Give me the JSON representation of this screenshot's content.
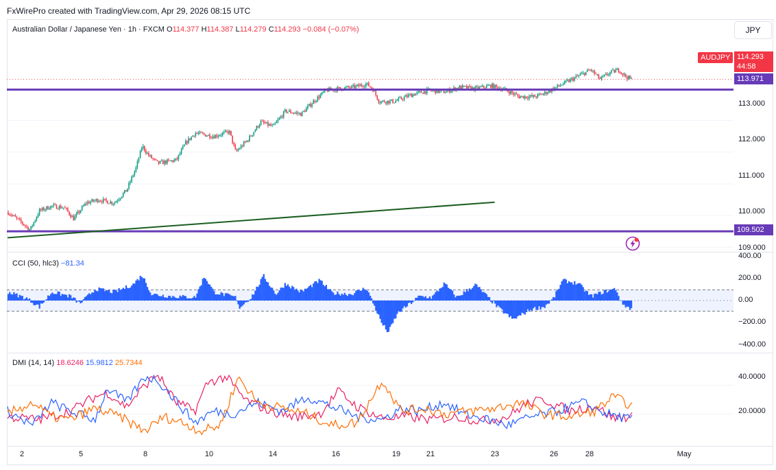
{
  "header": {
    "credit": "FxWirePro created with TradingView.com, Apr 29, 2026 08:15 UTC"
  },
  "legend": {
    "symbol": "Australian Dollar / Japanese Yen · 1h · FXCM",
    "o_label": "O",
    "o": "114.377",
    "h_label": "H",
    "h": "114.387",
    "l_label": "L",
    "l": "114.279",
    "c_label": "C",
    "c": "114.293",
    "change": "−0.084 (−0.07%)"
  },
  "currency_button": "JPY",
  "tags": {
    "symbol": "AUDJPY",
    "price": "114.293",
    "countdown": "44:58",
    "level_high": "113.971",
    "level_low": "109.502"
  },
  "colors": {
    "up": "#089981",
    "down": "#f23645",
    "level": "#673ab7",
    "trend": "#1b5e20",
    "cci": "#2962ff",
    "di_plus": "#2962ff",
    "di_minus": "#e91e63",
    "adx": "#ff6d00"
  },
  "chart_data": [
    {
      "type": "candlestick",
      "ylim": [
        108.9,
        115.5
      ],
      "y_ticks": [
        "113.000",
        "112.000",
        "111.000",
        "110.000",
        "109.000"
      ],
      "x_ticks": [
        "2",
        "5",
        "8",
        "10",
        "14",
        "16",
        "19",
        "21",
        "23",
        "26",
        "28",
        "May"
      ],
      "levels": [
        113.971,
        109.502
      ],
      "trendline": {
        "start": [
          0,
          109.3
        ],
        "end": [
          0.78,
          110.42
        ]
      },
      "close_path": [
        [
          0.0,
          110.1
        ],
        [
          0.02,
          109.8
        ],
        [
          0.035,
          109.55
        ],
        [
          0.05,
          110.15
        ],
        [
          0.07,
          110.3
        ],
        [
          0.09,
          110.25
        ],
        [
          0.105,
          109.9
        ],
        [
          0.125,
          110.4
        ],
        [
          0.145,
          110.5
        ],
        [
          0.17,
          110.4
        ],
        [
          0.19,
          110.8
        ],
        [
          0.205,
          111.5
        ],
        [
          0.215,
          112.2
        ],
        [
          0.225,
          111.9
        ],
        [
          0.24,
          111.65
        ],
        [
          0.27,
          111.75
        ],
        [
          0.285,
          112.3
        ],
        [
          0.3,
          112.6
        ],
        [
          0.33,
          112.5
        ],
        [
          0.355,
          112.65
        ],
        [
          0.365,
          112.0
        ],
        [
          0.385,
          112.4
        ],
        [
          0.405,
          112.95
        ],
        [
          0.425,
          112.8
        ],
        [
          0.445,
          113.3
        ],
        [
          0.47,
          113.2
        ],
        [
          0.49,
          113.6
        ],
        [
          0.51,
          113.95
        ],
        [
          0.53,
          114.0
        ],
        [
          0.555,
          114.05
        ],
        [
          0.575,
          114.15
        ],
        [
          0.585,
          114.0
        ],
        [
          0.595,
          113.6
        ],
        [
          0.62,
          113.6
        ],
        [
          0.645,
          113.8
        ],
        [
          0.675,
          113.95
        ],
        [
          0.7,
          113.9
        ],
        [
          0.725,
          114.05
        ],
        [
          0.75,
          114.0
        ],
        [
          0.775,
          114.1
        ],
        [
          0.8,
          113.95
        ],
        [
          0.82,
          113.75
        ],
        [
          0.845,
          113.75
        ],
        [
          0.86,
          113.85
        ],
        [
          0.875,
          114.0
        ],
        [
          0.895,
          114.2
        ],
        [
          0.915,
          114.4
        ],
        [
          0.935,
          114.6
        ],
        [
          0.95,
          114.3
        ],
        [
          0.965,
          114.5
        ],
        [
          0.98,
          114.6
        ],
        [
          0.99,
          114.4
        ],
        [
          1.0,
          114.29
        ]
      ],
      "last": 114.293
    },
    {
      "type": "bar",
      "name": "CCI (50, hlc3)",
      "value": "−81.34",
      "ylim": [
        -420,
        420
      ],
      "y_ticks": [
        "400.00",
        "200.00",
        "0.00",
        "−200.00",
        "−400.00"
      ],
      "band": [
        100,
        -100
      ],
      "profile": [
        [
          0.0,
          80
        ],
        [
          0.03,
          20
        ],
        [
          0.05,
          -60
        ],
        [
          0.07,
          80
        ],
        [
          0.1,
          40
        ],
        [
          0.115,
          -30
        ],
        [
          0.14,
          110
        ],
        [
          0.17,
          80
        ],
        [
          0.2,
          150
        ],
        [
          0.215,
          240
        ],
        [
          0.23,
          60
        ],
        [
          0.26,
          40
        ],
        [
          0.3,
          30
        ],
        [
          0.315,
          230
        ],
        [
          0.33,
          80
        ],
        [
          0.365,
          30
        ],
        [
          0.37,
          -70
        ],
        [
          0.39,
          30
        ],
        [
          0.41,
          230
        ],
        [
          0.43,
          60
        ],
        [
          0.445,
          160
        ],
        [
          0.47,
          80
        ],
        [
          0.5,
          190
        ],
        [
          0.52,
          70
        ],
        [
          0.55,
          60
        ],
        [
          0.575,
          120
        ],
        [
          0.6,
          -220
        ],
        [
          0.61,
          -300
        ],
        [
          0.625,
          -120
        ],
        [
          0.66,
          40
        ],
        [
          0.68,
          30
        ],
        [
          0.7,
          160
        ],
        [
          0.72,
          30
        ],
        [
          0.75,
          150
        ],
        [
          0.77,
          30
        ],
        [
          0.785,
          -60
        ],
        [
          0.81,
          -180
        ],
        [
          0.84,
          -80
        ],
        [
          0.86,
          -60
        ],
        [
          0.875,
          20
        ],
        [
          0.89,
          190
        ],
        [
          0.915,
          160
        ],
        [
          0.935,
          40
        ],
        [
          0.96,
          90
        ],
        [
          0.975,
          110
        ],
        [
          0.985,
          -30
        ],
        [
          1.0,
          -81
        ]
      ]
    },
    {
      "type": "line",
      "name": "DMI (14, 14)",
      "ylim": [
        0,
        60
      ],
      "y_ticks": [
        "40.0000",
        "20.0000"
      ],
      "series": [
        {
          "name": "",
          "value": "18.6246",
          "color": "#e91e63",
          "profile": [
            [
              0.0,
              18
            ],
            [
              0.05,
              16
            ],
            [
              0.1,
              22
            ],
            [
              0.14,
              32
            ],
            [
              0.16,
              35
            ],
            [
              0.19,
              25
            ],
            [
              0.22,
              40
            ],
            [
              0.24,
              48
            ],
            [
              0.27,
              28
            ],
            [
              0.3,
              22
            ],
            [
              0.32,
              42
            ],
            [
              0.35,
              46
            ],
            [
              0.38,
              30
            ],
            [
              0.42,
              22
            ],
            [
              0.46,
              18
            ],
            [
              0.5,
              20
            ],
            [
              0.53,
              36
            ],
            [
              0.56,
              25
            ],
            [
              0.6,
              17
            ],
            [
              0.64,
              18
            ],
            [
              0.68,
              16
            ],
            [
              0.72,
              18
            ],
            [
              0.76,
              15
            ],
            [
              0.8,
              18
            ],
            [
              0.83,
              27
            ],
            [
              0.86,
              30
            ],
            [
              0.9,
              22
            ],
            [
              0.94,
              26
            ],
            [
              0.97,
              17
            ],
            [
              1.0,
              18.6
            ]
          ]
        },
        {
          "name": "",
          "value": "15.9812",
          "color": "#2962ff",
          "profile": [
            [
              0.0,
              22
            ],
            [
              0.04,
              12
            ],
            [
              0.07,
              28
            ],
            [
              0.1,
              22
            ],
            [
              0.14,
              16
            ],
            [
              0.16,
              38
            ],
            [
              0.19,
              28
            ],
            [
              0.22,
              46
            ],
            [
              0.24,
              44
            ],
            [
              0.28,
              24
            ],
            [
              0.3,
              14
            ],
            [
              0.33,
              22
            ],
            [
              0.36,
              20
            ],
            [
              0.4,
              28
            ],
            [
              0.44,
              22
            ],
            [
              0.48,
              32
            ],
            [
              0.52,
              25
            ],
            [
              0.56,
              18
            ],
            [
              0.6,
              16
            ],
            [
              0.63,
              24
            ],
            [
              0.66,
              22
            ],
            [
              0.7,
              28
            ],
            [
              0.73,
              20
            ],
            [
              0.77,
              16
            ],
            [
              0.8,
              12
            ],
            [
              0.84,
              18
            ],
            [
              0.88,
              22
            ],
            [
              0.92,
              28
            ],
            [
              0.96,
              20
            ],
            [
              1.0,
              16
            ]
          ]
        },
        {
          "name": "",
          "value": "25.7344",
          "color": "#ff6d00",
          "profile": [
            [
              0.0,
              20
            ],
            [
              0.04,
              28
            ],
            [
              0.07,
              18
            ],
            [
              0.1,
              16
            ],
            [
              0.14,
              24
            ],
            [
              0.18,
              18
            ],
            [
              0.22,
              8
            ],
            [
              0.25,
              18
            ],
            [
              0.28,
              14
            ],
            [
              0.31,
              8
            ],
            [
              0.34,
              12
            ],
            [
              0.37,
              46
            ],
            [
              0.4,
              28
            ],
            [
              0.44,
              24
            ],
            [
              0.48,
              20
            ],
            [
              0.52,
              12
            ],
            [
              0.56,
              14
            ],
            [
              0.6,
              44
            ],
            [
              0.63,
              22
            ],
            [
              0.67,
              24
            ],
            [
              0.7,
              20
            ],
            [
              0.74,
              22
            ],
            [
              0.78,
              24
            ],
            [
              0.82,
              28
            ],
            [
              0.86,
              20
            ],
            [
              0.9,
              18
            ],
            [
              0.94,
              22
            ],
            [
              0.97,
              32
            ],
            [
              1.0,
              25.7
            ]
          ]
        }
      ]
    }
  ]
}
